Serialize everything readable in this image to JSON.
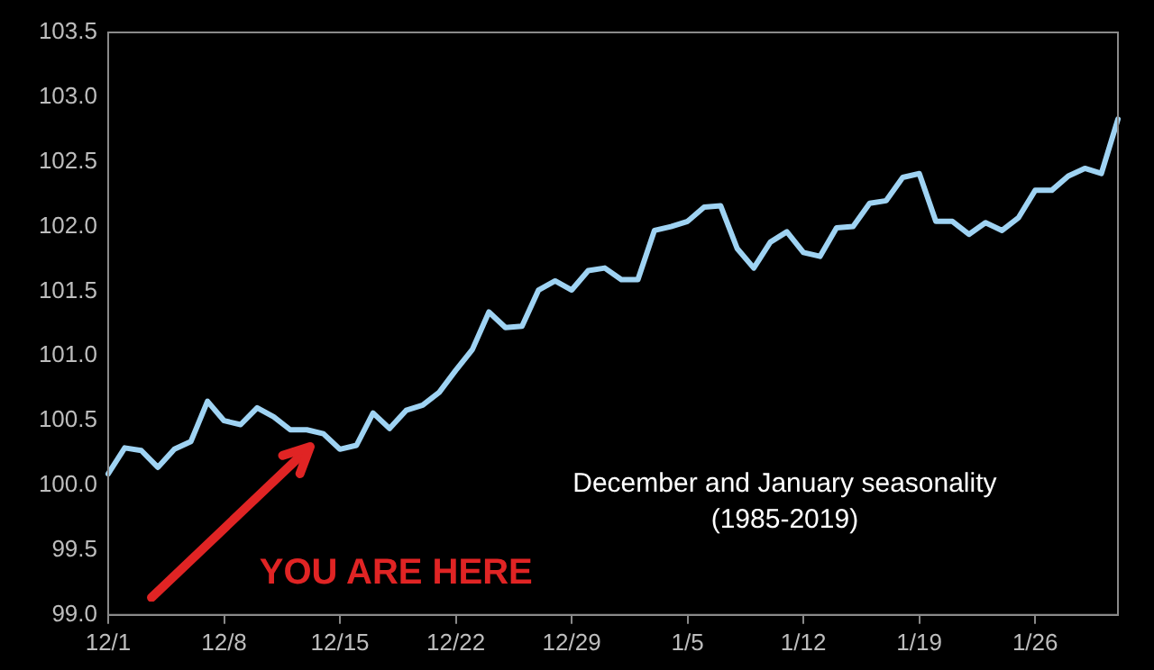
{
  "chart_data": {
    "type": "line",
    "categories": [
      "12/1",
      null,
      null,
      null,
      null,
      null,
      null,
      "12/8",
      null,
      null,
      null,
      null,
      null,
      null,
      "12/15",
      null,
      null,
      null,
      null,
      null,
      null,
      "12/22",
      null,
      null,
      null,
      null,
      null,
      null,
      "12/29",
      null,
      null,
      null,
      null,
      null,
      null,
      "1/5",
      null,
      null,
      null,
      null,
      null,
      null,
      "1/12",
      null,
      null,
      null,
      null,
      null,
      null,
      "1/19",
      null,
      null,
      null,
      null,
      null,
      null,
      "1/26",
      null,
      null,
      null,
      null,
      null
    ],
    "series": [
      {
        "color": "#9fd3f3",
        "values": [
          100.09,
          100.29,
          100.27,
          100.14,
          100.28,
          100.34,
          100.65,
          100.5,
          100.47,
          100.6,
          100.53,
          100.43,
          100.43,
          100.4,
          100.28,
          100.31,
          100.56,
          100.44,
          100.58,
          100.62,
          100.72,
          100.89,
          101.05,
          101.34,
          101.22,
          101.23,
          101.51,
          101.58,
          101.51,
          101.66,
          101.68,
          101.59,
          101.59,
          101.97,
          102.0,
          102.04,
          102.15,
          102.16,
          101.83,
          101.68,
          101.88,
          101.96,
          101.8,
          101.77,
          101.99,
          102.0,
          102.18,
          102.2,
          102.38,
          102.41,
          102.04,
          102.04,
          101.94,
          102.03,
          101.97,
          102.07,
          102.28,
          102.28,
          102.39,
          102.45,
          102.41,
          102.83
        ]
      }
    ],
    "ylim": [
      99.0,
      103.5
    ],
    "yticks": [
      {
        "value": 99.0,
        "label": "99.0"
      },
      {
        "value": 99.5,
        "label": "99.5"
      },
      {
        "value": 100.0,
        "label": "100.0"
      },
      {
        "value": 100.5,
        "label": "100.5"
      },
      {
        "value": 101.0,
        "label": "101.0"
      },
      {
        "value": 101.5,
        "label": "101.5"
      },
      {
        "value": 102.0,
        "label": "102.0"
      },
      {
        "value": 102.5,
        "label": "102.5"
      },
      {
        "value": 103.0,
        "label": "103.0"
      },
      {
        "value": 103.5,
        "label": "103.5"
      }
    ],
    "annotations": [
      "YOU ARE HERE",
      "December and January seasonality\n(1985-2019)"
    ],
    "grid": false,
    "legend": false,
    "marker": "none",
    "line_style": "solid"
  }
}
